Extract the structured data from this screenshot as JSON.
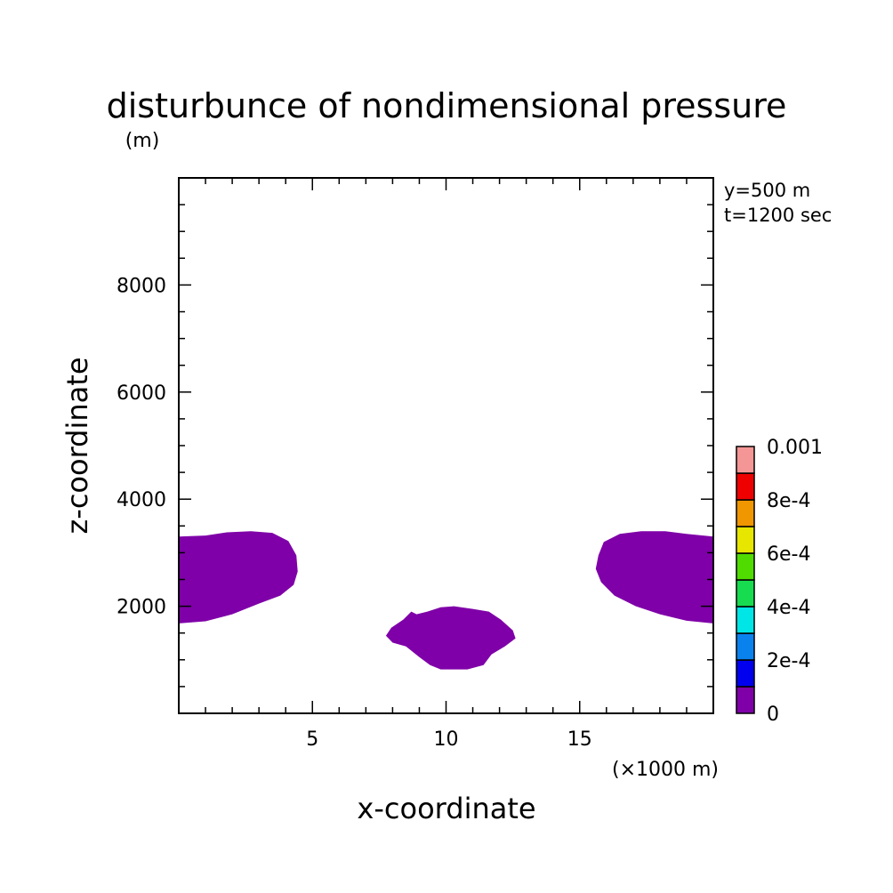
{
  "chart_data": {
    "type": "heatmap",
    "title": "disturbunce of nondimensional pressure",
    "units": "(m)",
    "info": [
      "y=500 m",
      "t=1200 sec"
    ],
    "xlabel": "x-coordinate",
    "ylabel": "z-coordinate",
    "x_unit_label": "(×1000 m)",
    "xlim": [
      0,
      20
    ],
    "ylim": [
      0,
      10000
    ],
    "x_ticks": [
      5,
      10,
      15
    ],
    "x_tick_labels": [
      "5",
      "10",
      "15"
    ],
    "y_ticks": [
      2000,
      4000,
      6000,
      8000
    ],
    "y_tick_labels": [
      "2000",
      "4000",
      "6000",
      "8000"
    ],
    "colorbar": {
      "min": 0,
      "max": 0.001,
      "tick_labels": [
        "0",
        "2e-4",
        "4e-4",
        "6e-4",
        "8e-4",
        "0.001"
      ],
      "tick_values": [
        0,
        0.0002,
        0.0004,
        0.0006,
        0.0008,
        0.001
      ],
      "colors": [
        "#7f00a8",
        "#0000ee",
        "#0a82ee",
        "#00e6e6",
        "#18dc50",
        "#50dc00",
        "#e6e600",
        "#f09600",
        "#ee0000",
        "#f59696"
      ]
    },
    "regions": [
      {
        "name": "left-region",
        "level_index": 0,
        "points": [
          [
            0,
            3300
          ],
          [
            1,
            3320
          ],
          [
            1.8,
            3380
          ],
          [
            2.7,
            3400
          ],
          [
            3.5,
            3370
          ],
          [
            4.1,
            3220
          ],
          [
            4.4,
            2950
          ],
          [
            4.45,
            2650
          ],
          [
            4.3,
            2400
          ],
          [
            3.8,
            2200
          ],
          [
            3,
            2050
          ],
          [
            2,
            1850
          ],
          [
            1,
            1720
          ],
          [
            0,
            1680
          ]
        ]
      },
      {
        "name": "center-region",
        "level_index": 0,
        "points": [
          [
            7.75,
            1450
          ],
          [
            7.95,
            1600
          ],
          [
            8.4,
            1750
          ],
          [
            8.7,
            1900
          ],
          [
            8.9,
            1850
          ],
          [
            9.3,
            1900
          ],
          [
            9.8,
            1980
          ],
          [
            10.3,
            2000
          ],
          [
            11,
            1950
          ],
          [
            11.6,
            1900
          ],
          [
            12.05,
            1750
          ],
          [
            12.5,
            1550
          ],
          [
            12.6,
            1400
          ],
          [
            12.2,
            1250
          ],
          [
            11.7,
            1100
          ],
          [
            11.4,
            900
          ],
          [
            10.8,
            820
          ],
          [
            9.8,
            820
          ],
          [
            9.4,
            900
          ],
          [
            9,
            1050
          ],
          [
            8.5,
            1250
          ],
          [
            8,
            1320
          ]
        ]
      },
      {
        "name": "right-region",
        "level_index": 0,
        "points": [
          [
            20,
            3300
          ],
          [
            19,
            3350
          ],
          [
            18.2,
            3400
          ],
          [
            17.3,
            3400
          ],
          [
            16.5,
            3350
          ],
          [
            15.9,
            3200
          ],
          [
            15.7,
            2950
          ],
          [
            15.6,
            2700
          ],
          [
            15.8,
            2450
          ],
          [
            16.3,
            2200
          ],
          [
            17.1,
            2000
          ],
          [
            18,
            1850
          ],
          [
            19,
            1730
          ],
          [
            20,
            1680
          ]
        ]
      }
    ]
  }
}
